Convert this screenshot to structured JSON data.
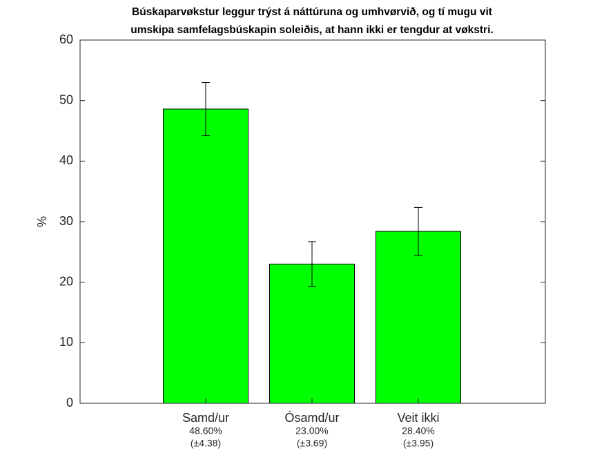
{
  "chart_data": {
    "type": "bar",
    "title": [
      "Búskaparvøkstur leggur trýst á náttúruna og umhvørvið, og tí mugu vit",
      "umskipa samfelagsbúskapin soleiðis, at hann ikki er tengdur at vøkstri."
    ],
    "ylabel": "%",
    "categories": [
      "Samd/ur",
      "Ósamd/ur",
      "Veit ikki"
    ],
    "values": [
      48.6,
      23,
      28.4
    ],
    "value_labels": [
      "48.60%",
      "23.00%",
      "28.40%"
    ],
    "errors": [
      4.38,
      3.69,
      3.95
    ],
    "error_labels": [
      "(±4.38)",
      "(±3.69)",
      "(±3.95)"
    ],
    "color": "#00ff00",
    "ylim": [
      0,
      60
    ],
    "yticks": [
      0,
      10,
      20,
      30,
      40,
      50,
      60
    ],
    "grid": false
  }
}
